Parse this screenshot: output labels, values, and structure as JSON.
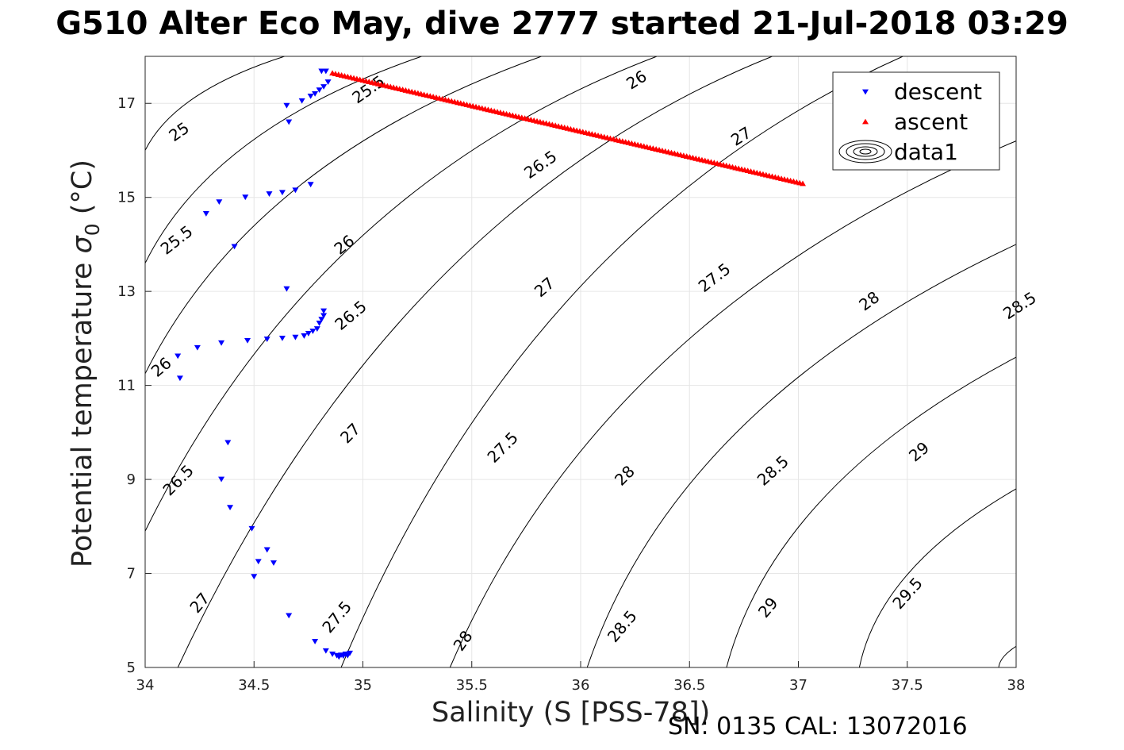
{
  "title": "G510 Alter Eco May, dive 2777 started 21-Jul-2018 03:29",
  "footer": "SN: 0135  CAL: 13072016",
  "chart_data": {
    "type": "scatter",
    "xlabel": "Salinity (S [PSS-78])",
    "ylabel_main": "Potential temperature ",
    "ylabel_sigma": "σ",
    "ylabel_sub": "0",
    "ylabel_unit": " (°C)",
    "xlim": [
      34,
      38
    ],
    "ylim": [
      5,
      18
    ],
    "xticks": [
      34,
      34.5,
      35,
      35.5,
      36,
      36.5,
      37,
      37.5,
      38
    ],
    "xtick_labels": [
      "34",
      "34.5",
      "35",
      "35.5",
      "36",
      "36.5",
      "37",
      "37.5",
      "38"
    ],
    "yticks": [
      5,
      7,
      9,
      11,
      13,
      15,
      17
    ],
    "ytick_labels": [
      "5",
      "7",
      "9",
      "11",
      "13",
      "15",
      "17"
    ],
    "grid": true,
    "legend_position": "top-right",
    "colors": {
      "descent": "#0000ff",
      "ascent": "#ff0000",
      "contour": "#000000"
    },
    "series": [
      {
        "name": "descent",
        "marker": "triangle-down",
        "color": "#0000ff",
        "points": [
          [
            34.81,
            17.68
          ],
          [
            34.83,
            17.68
          ],
          [
            34.84,
            17.45
          ],
          [
            34.82,
            17.35
          ],
          [
            34.8,
            17.28
          ],
          [
            34.78,
            17.2
          ],
          [
            34.76,
            17.15
          ],
          [
            34.72,
            17.05
          ],
          [
            34.65,
            16.95
          ],
          [
            34.66,
            16.6
          ],
          [
            34.76,
            15.27
          ],
          [
            34.69,
            15.15
          ],
          [
            34.63,
            15.1
          ],
          [
            34.57,
            15.07
          ],
          [
            34.46,
            15.0
          ],
          [
            34.34,
            14.9
          ],
          [
            34.28,
            14.65
          ],
          [
            34.41,
            13.95
          ],
          [
            34.65,
            13.05
          ],
          [
            34.82,
            12.58
          ],
          [
            34.82,
            12.48
          ],
          [
            34.81,
            12.4
          ],
          [
            34.8,
            12.32
          ],
          [
            34.79,
            12.2
          ],
          [
            34.77,
            12.15
          ],
          [
            34.75,
            12.1
          ],
          [
            34.73,
            12.05
          ],
          [
            34.69,
            12.02
          ],
          [
            34.63,
            12.0
          ],
          [
            34.56,
            11.98
          ],
          [
            34.47,
            11.95
          ],
          [
            34.35,
            11.9
          ],
          [
            34.24,
            11.8
          ],
          [
            34.15,
            11.62
          ],
          [
            34.16,
            11.15
          ],
          [
            34.38,
            9.78
          ],
          [
            34.35,
            9.0
          ],
          [
            34.39,
            8.4
          ],
          [
            34.49,
            7.95
          ],
          [
            34.56,
            7.5
          ],
          [
            34.52,
            7.25
          ],
          [
            34.59,
            7.22
          ],
          [
            34.5,
            6.93
          ],
          [
            34.66,
            6.1
          ],
          [
            34.78,
            5.55
          ],
          [
            34.83,
            5.35
          ],
          [
            34.86,
            5.28
          ],
          [
            34.88,
            5.25
          ],
          [
            34.9,
            5.26
          ],
          [
            34.92,
            5.28
          ],
          [
            34.94,
            5.3
          ],
          [
            34.89,
            5.22
          ],
          [
            34.91,
            5.24
          ],
          [
            34.93,
            5.25
          ]
        ]
      },
      {
        "name": "ascent",
        "marker": "triangle-up",
        "color": "#ff0000",
        "line_from": [
          34.86,
          17.65
        ],
        "line_to": [
          37.02,
          15.3
        ],
        "count": 155
      },
      {
        "name": "data1",
        "marker": "contour",
        "color": "#000000"
      }
    ],
    "contour_levels": [
      "25",
      "25.5",
      "26",
      "26.5",
      "27",
      "27.5",
      "28",
      "28.5",
      "29",
      "29.5"
    ],
    "contour_label_values": [
      "25",
      "25.5",
      "26",
      "25.5",
      "26",
      "26.5",
      "27",
      "26",
      "26.5",
      "27",
      "27.5",
      "28",
      "28.5",
      "26.5",
      "27",
      "27.5",
      "28",
      "28.5",
      "29",
      "27",
      "27.5",
      "28",
      "28.5",
      "29",
      "29.5"
    ]
  }
}
